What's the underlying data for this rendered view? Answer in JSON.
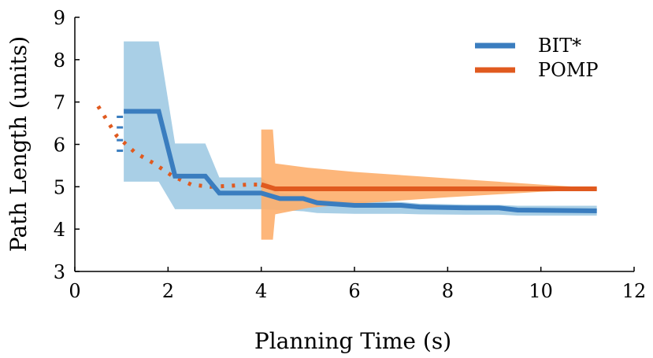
{
  "chart_data": {
    "type": "line",
    "title": "",
    "xlabel": "Planning Time (s)",
    "ylabel": "Path Length (units)",
    "xlim": [
      0,
      12
    ],
    "ylim": [
      3,
      9
    ],
    "xticks": [
      0,
      2,
      4,
      6,
      8,
      10,
      12
    ],
    "yticks": [
      3,
      4,
      5,
      6,
      7,
      8,
      9
    ],
    "grid": false,
    "legend_position": "top-right",
    "series": [
      {
        "name": "BIT*",
        "color": "#3a7dbf",
        "band_color": "#a9cfe6",
        "line_style": "solid",
        "x": [
          1.05,
          1.8,
          2.15,
          2.8,
          3.1,
          4.0,
          4.4,
          4.9,
          5.2,
          6.0,
          7.0,
          7.4,
          8.4,
          9.1,
          9.5,
          11.2
        ],
        "y": [
          6.78,
          6.78,
          5.25,
          5.25,
          4.85,
          4.85,
          4.72,
          4.72,
          4.62,
          4.56,
          4.56,
          4.52,
          4.5,
          4.5,
          4.45,
          4.43
        ],
        "band_x": [
          1.05,
          1.8,
          2.15,
          2.8,
          3.1,
          4.0,
          4.4,
          4.9,
          5.2,
          6.0,
          7.0,
          7.4,
          8.4,
          9.1,
          9.5,
          11.2
        ],
        "band_upper": [
          8.43,
          8.43,
          6.02,
          6.02,
          5.22,
          5.22,
          4.85,
          4.8,
          4.7,
          4.66,
          4.64,
          4.6,
          4.58,
          4.57,
          4.55,
          4.55
        ],
        "band_lower": [
          5.12,
          5.12,
          4.47,
          4.47,
          4.47,
          4.47,
          4.45,
          4.42,
          4.38,
          4.36,
          4.36,
          4.35,
          4.34,
          4.34,
          4.32,
          4.32
        ],
        "initial_marks_y": [
          5.85,
          6.1,
          6.4,
          6.65
        ]
      },
      {
        "name": "POMP",
        "color": "#e05a1f",
        "band_color": "#fdae6b",
        "line_style": "dotted-then-solid",
        "dotted_x": [
          0.5,
          0.9,
          1.3,
          1.7,
          2.1,
          2.5,
          2.9,
          3.3,
          3.7,
          4.0
        ],
        "dotted_y": [
          6.9,
          6.2,
          5.8,
          5.55,
          5.25,
          5.05,
          5.0,
          5.02,
          5.05,
          5.05
        ],
        "x": [
          4.0,
          4.3,
          5.0,
          6.0,
          8.0,
          10.0,
          11.2
        ],
        "y": [
          5.05,
          4.95,
          4.95,
          4.95,
          4.95,
          4.95,
          4.95
        ],
        "band_x": [
          4.0,
          4.25,
          4.3,
          5.0,
          6.0,
          8.0,
          10.0,
          11.2
        ],
        "band_upper": [
          6.35,
          6.35,
          5.55,
          5.45,
          5.35,
          5.2,
          5.05,
          4.97
        ],
        "band_lower": [
          3.75,
          3.75,
          4.35,
          4.5,
          4.6,
          4.75,
          4.88,
          4.93
        ]
      }
    ]
  }
}
